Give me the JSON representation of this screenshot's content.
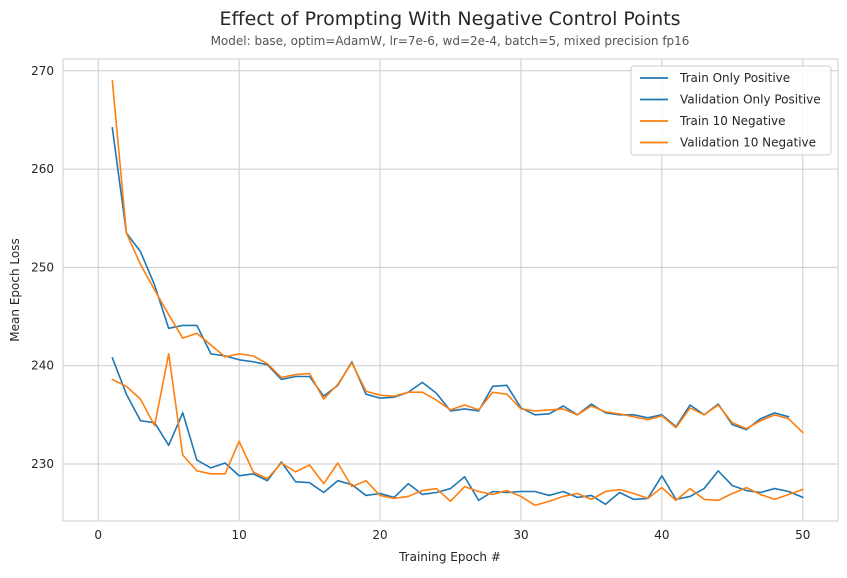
{
  "chart_data": {
    "type": "line",
    "title": "Effect of Prompting With Negative Control Points",
    "subtitle": "Model: base, optim=AdamW, lr=7e-6, wd=2e-4, batch=5, mixed precision fp16",
    "xlabel": "Training Epoch #",
    "ylabel": "Mean Epoch Loss",
    "xlim": [
      -2.5,
      52.5
    ],
    "ylim": [
      224.2,
      271.2
    ],
    "xticks": [
      0,
      10,
      20,
      30,
      40,
      50
    ],
    "yticks": [
      230,
      240,
      250,
      260,
      270
    ],
    "grid": true,
    "legend_position": "top-right",
    "x": [
      1,
      2,
      3,
      4,
      5,
      6,
      7,
      8,
      9,
      10,
      11,
      12,
      13,
      14,
      15,
      16,
      17,
      18,
      19,
      20,
      21,
      22,
      23,
      24,
      25,
      26,
      27,
      28,
      29,
      30,
      31,
      32,
      33,
      34,
      35,
      36,
      37,
      38,
      39,
      40,
      41,
      42,
      43,
      44,
      45,
      46,
      47,
      48,
      49,
      50
    ],
    "series": [
      {
        "name": "Train Only Positive",
        "color": "#1f77b4",
        "values": [
          264.2,
          253.5,
          251.6,
          248.2,
          243.8,
          244.1,
          244.1,
          241.2,
          241.0,
          240.6,
          240.4,
          240.1,
          238.6,
          238.9,
          238.9,
          236.9,
          238.0,
          240.4,
          237.1,
          236.7,
          236.8,
          237.3,
          238.3,
          237.2,
          235.4,
          235.6,
          235.4,
          237.9,
          238.0,
          235.7,
          235.0,
          235.1,
          235.9,
          235.0,
          236.1,
          235.2,
          235.0,
          235.0,
          234.7,
          235.0,
          233.8,
          236.0,
          235.0,
          236.1,
          234.0,
          233.5,
          234.6,
          235.2,
          234.8,
          null
        ]
      },
      {
        "name": "Validation Only Positive",
        "color": "#1f77b4",
        "values": [
          240.8,
          237.1,
          234.4,
          234.2,
          231.9,
          235.2,
          230.4,
          229.6,
          230.1,
          228.8,
          229.0,
          228.3,
          230.2,
          228.2,
          228.1,
          227.1,
          228.3,
          227.9,
          226.8,
          227.0,
          226.6,
          228.0,
          226.9,
          227.1,
          227.5,
          228.7,
          226.3,
          227.2,
          227.1,
          227.2,
          227.2,
          226.8,
          227.2,
          226.6,
          226.8,
          225.9,
          227.1,
          226.4,
          226.5,
          228.8,
          226.4,
          226.7,
          227.5,
          229.3,
          227.8,
          227.3,
          227.1,
          227.5,
          227.2,
          226.6
        ]
      },
      {
        "name": "Train 10 Negative",
        "color": "#ff7f0e",
        "values": [
          269.0,
          253.5,
          250.3,
          247.7,
          245.2,
          242.8,
          243.3,
          242.1,
          240.9,
          241.2,
          241.0,
          240.2,
          238.8,
          239.1,
          239.2,
          236.6,
          238.1,
          240.3,
          237.4,
          237.0,
          236.9,
          237.3,
          237.3,
          236.5,
          235.5,
          236.0,
          235.5,
          237.3,
          237.1,
          235.6,
          235.4,
          235.5,
          235.6,
          235.0,
          235.9,
          235.3,
          235.1,
          234.8,
          234.5,
          234.9,
          233.7,
          235.7,
          235.0,
          236.0,
          234.2,
          233.6,
          234.4,
          235.0,
          234.6,
          233.2
        ]
      },
      {
        "name": "Validation 10 Negative",
        "color": "#ff7f0e",
        "values": [
          238.6,
          237.9,
          236.6,
          233.9,
          241.2,
          230.9,
          229.3,
          229.0,
          229.0,
          232.3,
          229.2,
          228.5,
          230.1,
          229.2,
          229.9,
          228.0,
          230.1,
          227.7,
          228.3,
          226.8,
          226.5,
          226.7,
          227.3,
          227.5,
          226.2,
          227.7,
          227.2,
          226.9,
          227.3,
          226.7,
          225.8,
          226.2,
          226.7,
          227.0,
          226.4,
          227.2,
          227.4,
          227.0,
          226.5,
          227.6,
          226.3,
          227.5,
          226.4,
          226.3,
          227.0,
          227.6,
          226.9,
          226.4,
          226.9,
          227.4
        ]
      }
    ]
  }
}
